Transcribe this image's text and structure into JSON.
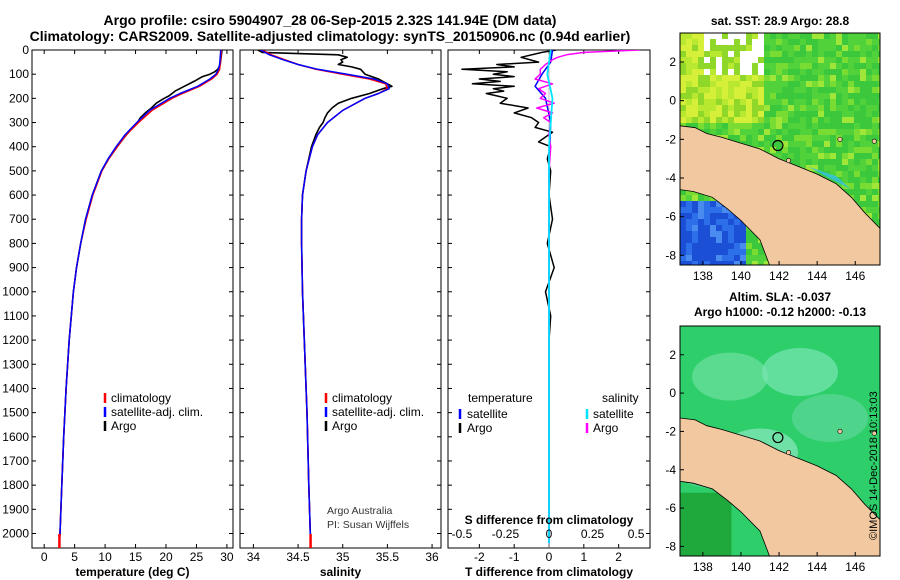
{
  "header": {
    "title_line1": "Argo profile: csiro 5904907_28 06-Sep-2015 2.32S 141.94E (DM data)",
    "title_line2": "Climatology: CARS2009. Satellite-adjusted climatology: synTS_20150906.nc (0.94d earlier)"
  },
  "colors": {
    "climatology": "#ff0000",
    "satellite": "#0000ff",
    "argo": "#000000",
    "satellite_salinity": "#00e5ff",
    "argo_salinity": "#ff00ff",
    "land": "#f2c8a0"
  },
  "y_axis": {
    "ticks": [
      "0",
      "100",
      "200",
      "300",
      "400",
      "500",
      "600",
      "700",
      "800",
      "900",
      "1000",
      "1100",
      "1200",
      "1300",
      "1400",
      "1500",
      "1600",
      "1700",
      "1800",
      "1900",
      "2000"
    ]
  },
  "chart_data": [
    {
      "type": "line",
      "id": "temperature",
      "xlabel": "temperature (deg C)",
      "ylabel": "",
      "xlim": [
        -2,
        31
      ],
      "ylim": [
        2060,
        0
      ],
      "xticks": [
        "0",
        "5",
        "10",
        "15",
        "20",
        "25",
        "30"
      ],
      "xtick_values": [
        0,
        5,
        10,
        15,
        20,
        25,
        30
      ],
      "legend": [
        "climatology",
        "satellite-adj. clim.",
        "Argo"
      ],
      "series": [
        {
          "name": "climatology",
          "depth": [
            0,
            30,
            60,
            80,
            100,
            120,
            150,
            180,
            200,
            250,
            300,
            350,
            400,
            450,
            500,
            600,
            700,
            800,
            900,
            1000,
            1200,
            1400,
            1600,
            1800,
            2000,
            2040
          ],
          "values": [
            29.1,
            29.0,
            28.9,
            28.8,
            28.4,
            27.5,
            25.5,
            22.7,
            21.0,
            17.7,
            15.5,
            13.5,
            12.0,
            10.6,
            9.5,
            8.0,
            6.9,
            6.0,
            5.3,
            4.8,
            4.1,
            3.6,
            3.2,
            2.9,
            2.6,
            2.5
          ]
        },
        {
          "name": "satellite-adj. clim.",
          "depth": [
            0,
            30,
            60,
            80,
            100,
            120,
            150,
            180,
            200,
            250,
            300,
            350,
            400,
            450,
            500,
            600,
            700,
            800,
            900,
            1000,
            1200,
            1400,
            1600,
            1800,
            2000,
            2040
          ],
          "values": [
            29.0,
            28.9,
            28.8,
            28.6,
            28.2,
            27.2,
            25.2,
            22.3,
            20.6,
            17.3,
            15.2,
            13.3,
            11.8,
            10.5,
            9.4,
            7.9,
            6.8,
            6.0,
            5.3,
            4.8,
            4.1,
            3.6,
            3.2,
            2.9,
            2.6,
            2.5
          ]
        },
        {
          "name": "Argo",
          "depth": [
            0,
            20,
            40,
            60,
            80,
            90,
            100,
            110,
            130,
            150,
            170,
            190,
            200,
            220,
            240,
            260,
            280,
            300,
            330,
            360,
            400,
            450,
            500,
            600,
            700,
            800,
            900,
            1000,
            1200,
            1400,
            1600,
            1800,
            2000,
            2040
          ],
          "values": [
            29.2,
            29.1,
            29.0,
            28.9,
            28.5,
            28.0,
            27.2,
            26.0,
            24.6,
            23.0,
            21.5,
            20.5,
            19.7,
            18.4,
            17.6,
            16.6,
            15.8,
            15.3,
            14.2,
            13.2,
            12.0,
            10.6,
            9.4,
            7.9,
            6.8,
            6.0,
            5.3,
            4.8,
            4.1,
            3.6,
            3.2,
            2.9,
            2.6,
            2.5
          ]
        }
      ]
    },
    {
      "type": "line",
      "id": "salinity",
      "xlabel": "salinity",
      "ylabel": "",
      "xlim": [
        33.85,
        36.1
      ],
      "ylim": [
        2060,
        0
      ],
      "xticks": [
        "34",
        "34.5",
        "35",
        "35.5",
        "36"
      ],
      "xtick_values": [
        34,
        34.5,
        35,
        35.5,
        36
      ],
      "legend": [
        "climatology",
        "satellite-adj. clim.",
        "Argo"
      ],
      "series": [
        {
          "name": "climatology",
          "depth": [
            0,
            20,
            40,
            60,
            80,
            100,
            120,
            140,
            160,
            180,
            200,
            250,
            300,
            350,
            400,
            500,
            600,
            700,
            800,
            1000,
            1200,
            1500,
            1800,
            2040
          ],
          "values": [
            34.1,
            34.2,
            34.35,
            34.5,
            34.7,
            35.0,
            35.3,
            35.48,
            35.5,
            35.4,
            35.25,
            35.0,
            34.83,
            34.72,
            34.66,
            34.59,
            34.55,
            34.54,
            34.54,
            34.55,
            34.57,
            34.6,
            34.62,
            34.64
          ]
        },
        {
          "name": "satellite-adj. clim.",
          "depth": [
            0,
            20,
            40,
            60,
            80,
            100,
            120,
            140,
            160,
            180,
            200,
            250,
            300,
            350,
            400,
            500,
            600,
            700,
            800,
            1000,
            1200,
            1500,
            1800,
            2040
          ],
          "values": [
            34.08,
            34.18,
            34.33,
            34.5,
            34.72,
            35.05,
            35.35,
            35.5,
            35.52,
            35.4,
            35.25,
            35.0,
            34.83,
            34.72,
            34.66,
            34.59,
            34.55,
            34.54,
            34.54,
            34.55,
            34.57,
            34.6,
            34.62,
            34.64
          ]
        },
        {
          "name": "Argo",
          "depth": [
            0,
            10,
            20,
            30,
            40,
            50,
            60,
            70,
            80,
            100,
            120,
            140,
            150,
            160,
            180,
            200,
            220,
            240,
            260,
            280,
            300,
            320,
            350,
            400,
            500,
            600,
            700,
            800,
            1000,
            1200,
            1500,
            1800,
            2040
          ],
          "values": [
            34.05,
            34.1,
            34.95,
            35.05,
            34.98,
            35.0,
            34.95,
            35.1,
            35.2,
            35.25,
            35.4,
            35.5,
            35.55,
            35.45,
            35.3,
            35.1,
            34.95,
            34.88,
            34.83,
            34.8,
            34.78,
            34.74,
            34.7,
            34.65,
            34.59,
            34.55,
            34.54,
            34.54,
            34.55,
            34.57,
            34.6,
            34.62,
            34.64
          ]
        }
      ]
    },
    {
      "type": "line",
      "id": "differences",
      "xlabel": "T difference from climatology",
      "ylabel": "",
      "xlim": [
        -2.9,
        2.9
      ],
      "ylim": [
        2060,
        0
      ],
      "xticks": [
        "-2",
        "-1",
        "0",
        "1",
        "2"
      ],
      "xtick_values": [
        -2,
        -1,
        0,
        1,
        2
      ],
      "secondary_xlabel": "S difference from climatology",
      "secondary_xticks": [
        "-0.5",
        "-0.25",
        "0",
        "0.25",
        "0.5"
      ],
      "secondary_xtick_values": [
        -0.5,
        -0.25,
        0,
        0.25,
        0.5
      ],
      "secondary_xlim": [
        -0.58,
        0.58
      ],
      "legend": {
        "left_title": "temperature",
        "left": [
          "satellite",
          "Argo"
        ],
        "right_title": "salinity",
        "right": [
          "satellite",
          "Argo"
        ]
      },
      "series": [
        {
          "name": "T satellite",
          "depth": [
            0,
            50,
            100,
            150,
            200,
            300,
            500,
            800,
            1200,
            1600,
            2040
          ],
          "values": [
            0.1,
            0.05,
            -0.2,
            -0.4,
            -0.1,
            0.05,
            0,
            0,
            0,
            0,
            0
          ]
        },
        {
          "name": "T Argo",
          "depth": [
            0,
            10,
            30,
            50,
            60,
            70,
            80,
            90,
            100,
            110,
            120,
            130,
            140,
            150,
            160,
            170,
            180,
            190,
            200,
            220,
            240,
            260,
            280,
            300,
            320,
            340,
            360,
            380,
            400,
            450,
            500,
            600,
            700,
            800,
            900,
            1000,
            1100,
            1200,
            1400,
            1600,
            1800,
            2040
          ],
          "values": [
            0.2,
            -0.2,
            -0.8,
            -0.3,
            -1.5,
            -1.0,
            -2.5,
            -1.2,
            -1.6,
            -1.0,
            -2.0,
            -1.4,
            -2.2,
            -1.0,
            -1.6,
            -1.3,
            -1.8,
            -1.5,
            -1.2,
            -1.4,
            -0.6,
            -1.0,
            -0.5,
            -0.3,
            -0.4,
            0.1,
            -0.1,
            -0.3,
            0.05,
            -0.05,
            0.05,
            0,
            0.1,
            -0.05,
            0.15,
            -0.1,
            0.05,
            0,
            0,
            0,
            0,
            0
          ]
        },
        {
          "name": "S satellite",
          "depth": [
            0,
            100,
            200,
            400,
            800,
            1200,
            1600,
            2040
          ],
          "values": [
            0.01,
            -0.01,
            0.02,
            0,
            0,
            0,
            0,
            0
          ]
        },
        {
          "name": "S Argo",
          "depth": [
            0,
            10,
            20,
            30,
            40,
            50,
            60,
            80,
            100,
            120,
            140,
            160,
            180,
            200,
            220,
            240,
            260,
            280,
            300,
            350,
            400,
            500,
            600,
            700,
            800,
            1000,
            1400,
            2040
          ],
          "values": [
            0.52,
            0.2,
            0.1,
            0.05,
            0.02,
            0.0,
            -0.02,
            -0.05,
            -0.05,
            -0.08,
            0.02,
            -0.06,
            -0.02,
            -0.05,
            0.03,
            -0.07,
            0.02,
            -0.03,
            0.01,
            0,
            0.01,
            0,
            0,
            0,
            0,
            0,
            0,
            0
          ]
        }
      ]
    }
  ],
  "footer": {
    "credit_line1": "Argo Australia",
    "credit_line2": "PI: Susan Wijffels"
  },
  "maps": {
    "sst": {
      "title": "sat. SST: 28.9 Argo: 28.8",
      "xticks": [
        "138",
        "140",
        "142",
        "144",
        "146"
      ],
      "yticks": [
        "2",
        "0",
        "-2",
        "-4",
        "-6",
        "-8"
      ],
      "xtick_values": [
        138,
        140,
        142,
        144,
        146
      ],
      "ytick_values": [
        2,
        0,
        -2,
        -4,
        -6,
        -8
      ],
      "lon_range": [
        136.8,
        147.3
      ],
      "lat_range": [
        -8.5,
        3.5
      ],
      "profile_point": [
        141.94,
        -2.32
      ]
    },
    "sla": {
      "title_line1": "Altim. SLA: -0.037",
      "title_line2": "Argo h1000: -0.12 h2000: -0.13",
      "xticks": [
        "138",
        "140",
        "142",
        "144",
        "146"
      ],
      "yticks": [
        "2",
        "0",
        "-2",
        "-4",
        "-6",
        "-8"
      ],
      "xtick_values": [
        138,
        140,
        142,
        144,
        146
      ],
      "ytick_values": [
        2,
        0,
        -2,
        -4,
        -6,
        -8
      ],
      "lon_range": [
        136.8,
        147.3
      ],
      "lat_range": [
        -8.5,
        3.5
      ],
      "profile_point": [
        141.94,
        -2.32
      ]
    }
  },
  "stamp": "©IMOS 14-Dec-2018 10:13:03"
}
